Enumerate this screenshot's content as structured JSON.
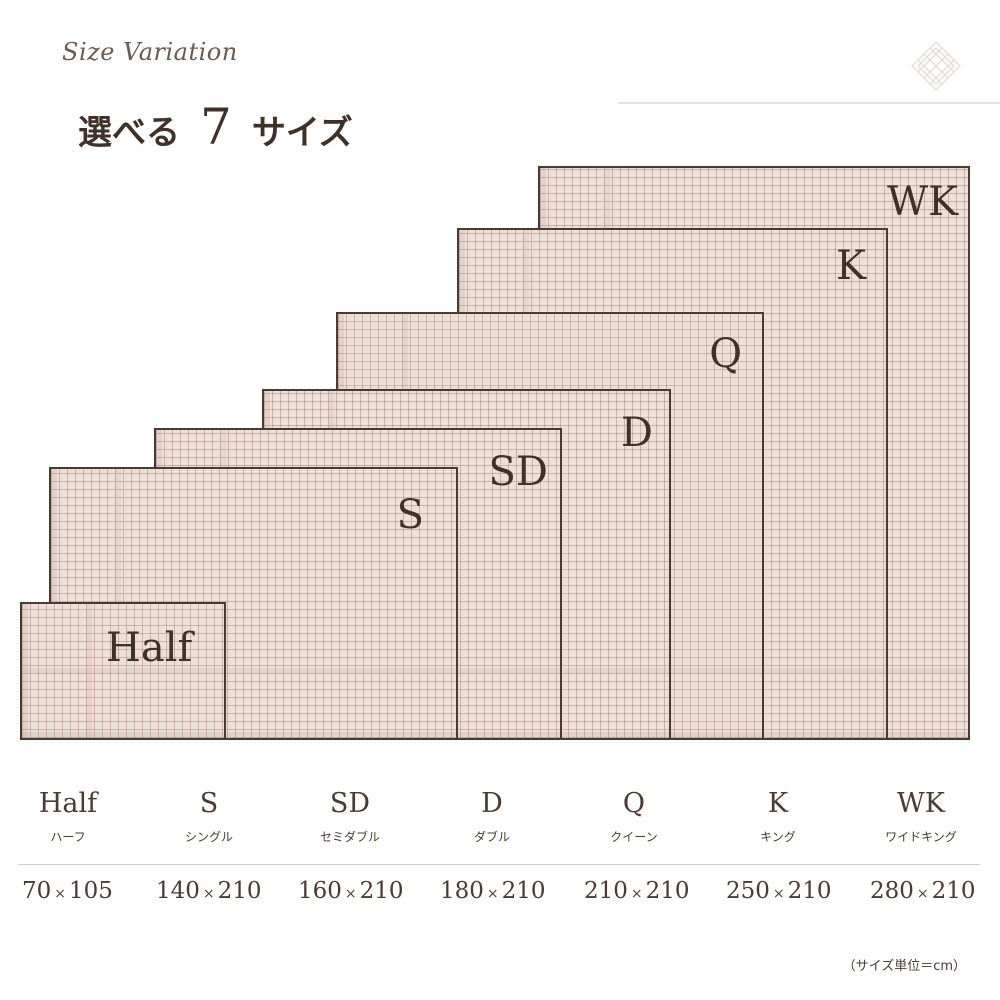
{
  "header": {
    "script_title": "Size Variation",
    "title_prefix": "選べる",
    "title_number": "7",
    "title_suffix": "サイズ"
  },
  "rugs": [
    {
      "code": "WK"
    },
    {
      "code": "K"
    },
    {
      "code": "Q"
    },
    {
      "code": "D"
    },
    {
      "code": "SD"
    },
    {
      "code": "S"
    },
    {
      "code": "Half"
    }
  ],
  "sizes": [
    {
      "code": "Half",
      "kana": "ハーフ",
      "w": "70",
      "x": "×",
      "h": "105"
    },
    {
      "code": "S",
      "kana": "シングル",
      "w": "140",
      "x": "×",
      "h": "210"
    },
    {
      "code": "SD",
      "kana": "セミダブル",
      "w": "160",
      "x": "×",
      "h": "210"
    },
    {
      "code": "D",
      "kana": "ダブル",
      "w": "180",
      "x": "×",
      "h": "210"
    },
    {
      "code": "Q",
      "kana": "クイーン",
      "w": "210",
      "x": "×",
      "h": "210"
    },
    {
      "code": "K",
      "kana": "キング",
      "w": "250",
      "x": "×",
      "h": "210"
    },
    {
      "code": "WK",
      "kana": "ワイドキング",
      "w": "280",
      "x": "×",
      "h": "210"
    }
  ],
  "unit_note": "（サイズ単位＝cm）",
  "colors": {
    "rug_fill": "#efdfd6",
    "rug_border": "#4a3a30",
    "text": "#4a3a30",
    "accent_line": "#eadddd"
  },
  "icons": [
    "lattice-diamond-icon"
  ]
}
